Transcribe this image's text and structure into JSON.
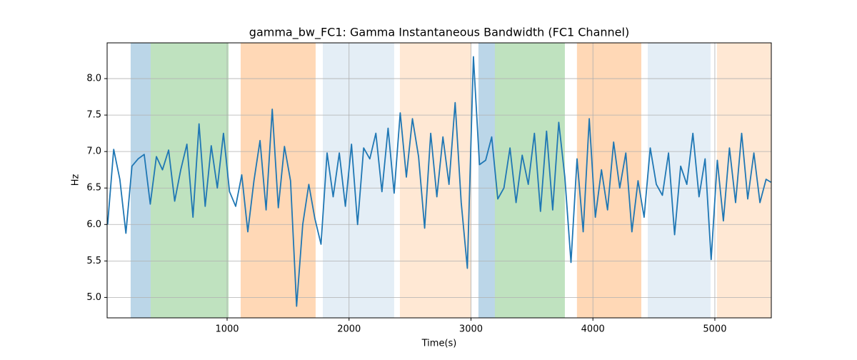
{
  "chart_data": {
    "type": "line",
    "title": "gamma_bw_FC1: Gamma Instantaneous Bandwidth (FC1 Channel)",
    "xlabel": "Time(s)",
    "ylabel": "Hz",
    "xlim": [
      16,
      5463
    ],
    "ylim": [
      4.72,
      8.49
    ],
    "xticks": [
      1000,
      2000,
      3000,
      4000,
      5000
    ],
    "yticks": [
      {
        "value": 5,
        "label": "5.0"
      },
      {
        "value": 5.5,
        "label": "5.5"
      },
      {
        "value": 6,
        "label": "6.0"
      },
      {
        "value": 6.5,
        "label": "6.5"
      },
      {
        "value": 7,
        "label": "7.0"
      },
      {
        "value": 7.5,
        "label": "7.5"
      },
      {
        "value": 8,
        "label": "8.0"
      }
    ],
    "grid": true,
    "spans": [
      {
        "x": [
          209,
          373
        ],
        "color": "#1f77b44d"
      },
      {
        "x": [
          373,
          1012
        ],
        "color": "#2ca02c4d"
      },
      {
        "x": [
          1111,
          1726
        ],
        "color": "#ff7f0e4d"
      },
      {
        "x": [
          1785,
          2370
        ],
        "color": "#1f77b41f"
      },
      {
        "x": [
          2417,
          3003
        ],
        "color": "#ff7f0e2e"
      },
      {
        "x": [
          3061,
          3196
        ],
        "color": "#1f77b44d"
      },
      {
        "x": [
          3196,
          3770
        ],
        "color": "#2ca02c4d"
      },
      {
        "x": [
          3869,
          4397
        ],
        "color": "#ff7f0e4d"
      },
      {
        "x": [
          4450,
          4965
        ],
        "color": "#1f77b41f"
      },
      {
        "x": [
          5017,
          5463
        ],
        "color": "#ff7f0e2e"
      }
    ],
    "series": [
      {
        "color": "#1f77b4",
        "x": [
          20,
          70,
          120,
          170,
          220,
          270,
          320,
          370,
          420,
          470,
          520,
          570,
          620,
          670,
          720,
          770,
          820,
          870,
          920,
          970,
          1020,
          1070,
          1120,
          1170,
          1220,
          1270,
          1320,
          1370,
          1420,
          1470,
          1520,
          1570,
          1620,
          1670,
          1720,
          1770,
          1820,
          1870,
          1920,
          1970,
          2020,
          2070,
          2120,
          2170,
          2220,
          2270,
          2320,
          2370,
          2420,
          2470,
          2520,
          2570,
          2620,
          2670,
          2720,
          2770,
          2820,
          2870,
          2920,
          2970,
          3020,
          3070,
          3120,
          3170,
          3220,
          3270,
          3320,
          3370,
          3420,
          3470,
          3520,
          3570,
          3620,
          3670,
          3720,
          3770,
          3820,
          3870,
          3920,
          3970,
          4020,
          4070,
          4120,
          4170,
          4220,
          4270,
          4320,
          4370,
          4420,
          4470,
          4520,
          4570,
          4620,
          4670,
          4720,
          4770,
          4820,
          4870,
          4920,
          4970,
          5020,
          5070,
          5120,
          5170,
          5220,
          5270,
          5320,
          5370,
          5420,
          5460
        ],
        "values": [
          6.0,
          7.03,
          6.62,
          5.88,
          6.8,
          6.9,
          6.96,
          6.28,
          6.93,
          6.75,
          7.02,
          6.32,
          6.75,
          7.1,
          6.1,
          7.38,
          6.25,
          7.08,
          6.5,
          7.25,
          6.45,
          6.25,
          6.68,
          5.9,
          6.6,
          7.15,
          6.2,
          7.58,
          6.23,
          7.07,
          6.6,
          4.88,
          6.0,
          6.55,
          6.08,
          5.73,
          6.98,
          6.38,
          6.98,
          6.25,
          7.1,
          6.0,
          7.05,
          6.9,
          7.25,
          6.45,
          7.32,
          6.43,
          7.53,
          6.65,
          7.45,
          6.93,
          5.95,
          7.25,
          6.38,
          7.2,
          6.55,
          7.67,
          6.3,
          5.4,
          8.3,
          6.82,
          6.88,
          7.2,
          6.35,
          6.5,
          7.05,
          6.3,
          6.95,
          6.55,
          7.25,
          6.18,
          7.28,
          6.2,
          7.4,
          6.65,
          5.48,
          6.9,
          5.9,
          7.45,
          6.1,
          6.75,
          6.2,
          7.13,
          6.5,
          6.98,
          5.9,
          6.6,
          6.1,
          7.05,
          6.55,
          6.4,
          6.98,
          5.86,
          6.8,
          6.55,
          7.25,
          6.38,
          6.9,
          5.52,
          6.88,
          6.05,
          7.05,
          6.3,
          7.25,
          6.35,
          6.98,
          6.3,
          6.62,
          6.58
        ]
      }
    ]
  }
}
